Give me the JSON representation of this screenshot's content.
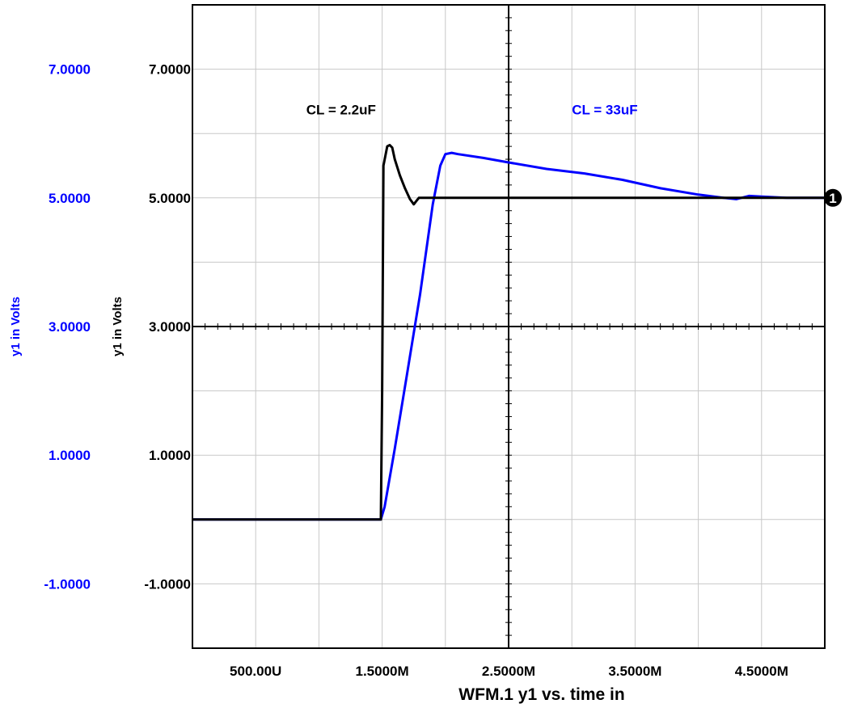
{
  "chart_data": {
    "type": "line",
    "title": "",
    "xlabel": "WFM.1    y1 vs. time in",
    "ylabel_left_outer": "y1 in Volts",
    "ylabel_left_inner": "y1 in Volts",
    "xlim": [
      0,
      5000
    ],
    "ylim": [
      -2,
      8
    ],
    "x_unit_note": "time in microseconds",
    "x_ticks": [
      {
        "value": 500,
        "label": "500.00U"
      },
      {
        "value": 1500,
        "label": "1.5000M"
      },
      {
        "value": 2500,
        "label": "2.5000M"
      },
      {
        "value": 3500,
        "label": "3.5000M"
      },
      {
        "value": 4500,
        "label": "4.5000M"
      }
    ],
    "y_ticks": [
      {
        "value": -1,
        "label": "-1.0000"
      },
      {
        "value": 1,
        "label": "1.0000"
      },
      {
        "value": 3,
        "label": "3.0000"
      },
      {
        "value": 5,
        "label": "5.0000"
      },
      {
        "value": 7,
        "label": "7.0000"
      }
    ],
    "grid": true,
    "annotations": [
      {
        "text": "CL = 2.2uF",
        "x": 900,
        "y": 6.3,
        "color": "#000000"
      },
      {
        "text": "CL = 33uF",
        "x": 3000,
        "y": 6.3,
        "color": "#0000ff"
      }
    ],
    "marker": {
      "label": "1",
      "y": 5.0
    },
    "series": [
      {
        "legend": "CL = 2.2uF",
        "color": "#000000",
        "x": [
          0,
          1490,
          1500,
          1510,
          1540,
          1560,
          1580,
          1600,
          1640,
          1680,
          1720,
          1750,
          1770,
          1790,
          1800,
          5000
        ],
        "y": [
          0,
          0,
          2.0,
          5.5,
          5.8,
          5.82,
          5.78,
          5.6,
          5.35,
          5.15,
          4.98,
          4.9,
          4.95,
          5.0,
          5.0,
          5.0
        ]
      },
      {
        "legend": "CL = 33uF",
        "color": "#0000ff",
        "x": [
          0,
          1490,
          1520,
          1600,
          1700,
          1800,
          1900,
          1960,
          2000,
          2050,
          2100,
          2300,
          2500,
          2800,
          3100,
          3400,
          3700,
          4000,
          4200,
          4300,
          4400,
          4500,
          4700,
          5000
        ],
        "y": [
          0,
          0,
          0.2,
          1.1,
          2.3,
          3.5,
          4.9,
          5.5,
          5.68,
          5.7,
          5.68,
          5.62,
          5.55,
          5.45,
          5.38,
          5.28,
          5.15,
          5.05,
          5.0,
          4.98,
          5.03,
          5.02,
          5.0,
          5.0
        ]
      }
    ]
  }
}
